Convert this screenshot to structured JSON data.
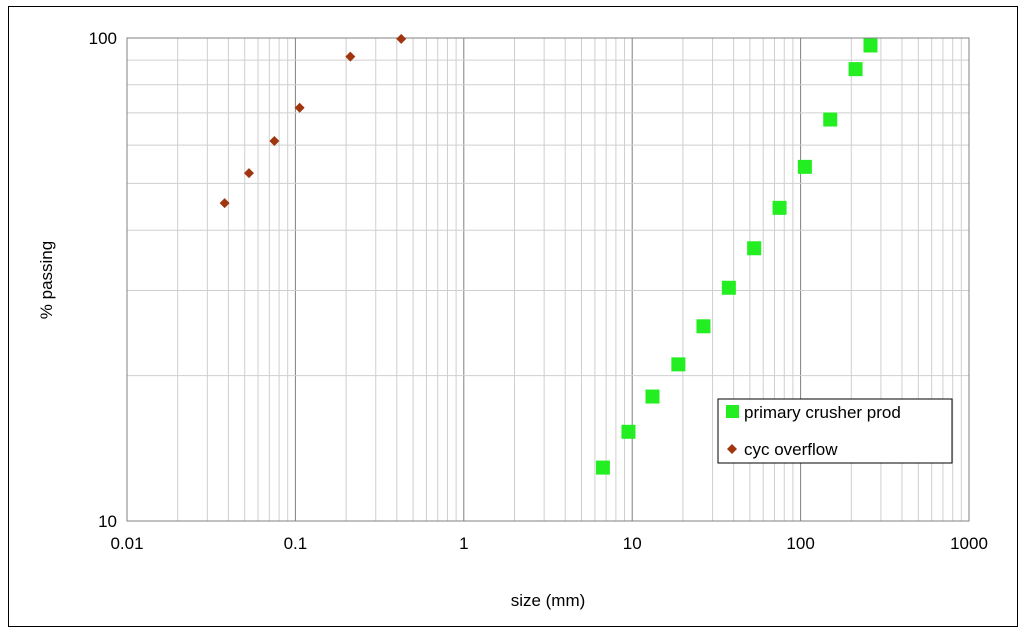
{
  "chart_data": {
    "type": "scatter",
    "xscale": "log",
    "yscale": "log",
    "xlim": [
      0.01,
      1000
    ],
    "ylim": [
      10,
      100
    ],
    "xlabel": "size (mm)",
    "ylabel": "% passing",
    "x_ticks": [
      "0.01",
      "0.1",
      "1",
      "10",
      "100",
      "1000"
    ],
    "y_ticks": [
      "10",
      "100"
    ],
    "grid": true,
    "legend": {
      "position": "bottom-right"
    },
    "series": [
      {
        "name": "primary crusher prod",
        "marker": "square",
        "color": "#22ee22",
        "points": [
          [
            6.7,
            12.9
          ],
          [
            9.5,
            15.3
          ],
          [
            13.2,
            18.1
          ],
          [
            18.8,
            21.1
          ],
          [
            26.5,
            25.3
          ],
          [
            37.5,
            30.4
          ],
          [
            53,
            36.7
          ],
          [
            75,
            44.5
          ],
          [
            106,
            54.1
          ],
          [
            150,
            67.8
          ],
          [
            212,
            86.2
          ],
          [
            260,
            96.5
          ]
        ]
      },
      {
        "name": "cyc overflow",
        "marker": "diamond",
        "color": "#a0360f",
        "points": [
          [
            0.038,
            45.5
          ],
          [
            0.053,
            52.5
          ],
          [
            0.075,
            61.2
          ],
          [
            0.106,
            71.7
          ],
          [
            0.212,
            91.5
          ],
          [
            0.425,
            99.6
          ]
        ]
      }
    ]
  }
}
